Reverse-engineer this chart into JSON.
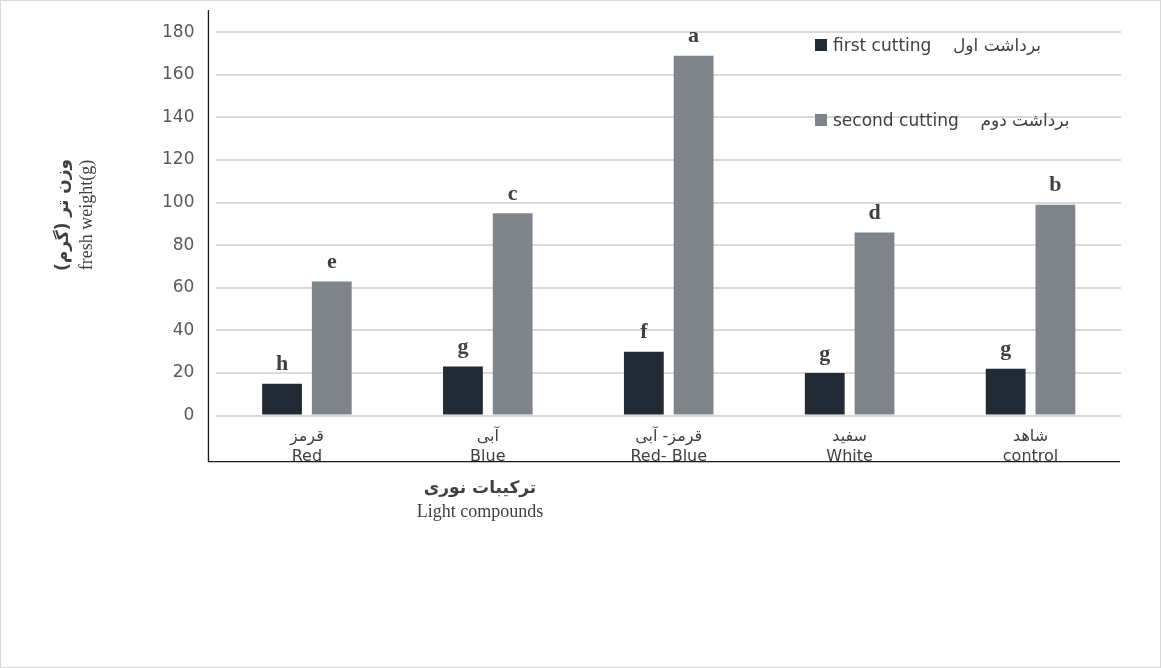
{
  "chart_data": {
    "type": "bar",
    "categories": [
      "قرمز\nRed",
      "آبی\nBlue",
      "قرمز- آبی\nRed- Blue",
      "سفید\nWhite",
      "شاهد\ncontrol"
    ],
    "series": [
      {
        "name": "first cutting    برداشت اول",
        "color": "#222a35",
        "values": [
          15,
          23,
          30,
          20,
          22
        ],
        "value_labels": [
          "h",
          "g",
          "f",
          "g",
          "g"
        ]
      },
      {
        "name": "second cutting    برداشت دوم",
        "color": "#7f848b",
        "values": [
          63,
          95,
          169,
          86,
          99
        ],
        "value_labels": [
          "e",
          "c",
          "a",
          "d",
          "b"
        ]
      }
    ],
    "xlabel": "ترکیبات نوری\nLight compounds",
    "ylabel": "وزن تر (گرم)\nfresh weight(g)",
    "ylim": [
      0,
      180
    ],
    "yticks": [
      0,
      20,
      40,
      60,
      80,
      100,
      120,
      140,
      160,
      180
    ],
    "grid": "y",
    "legend": "top right"
  }
}
